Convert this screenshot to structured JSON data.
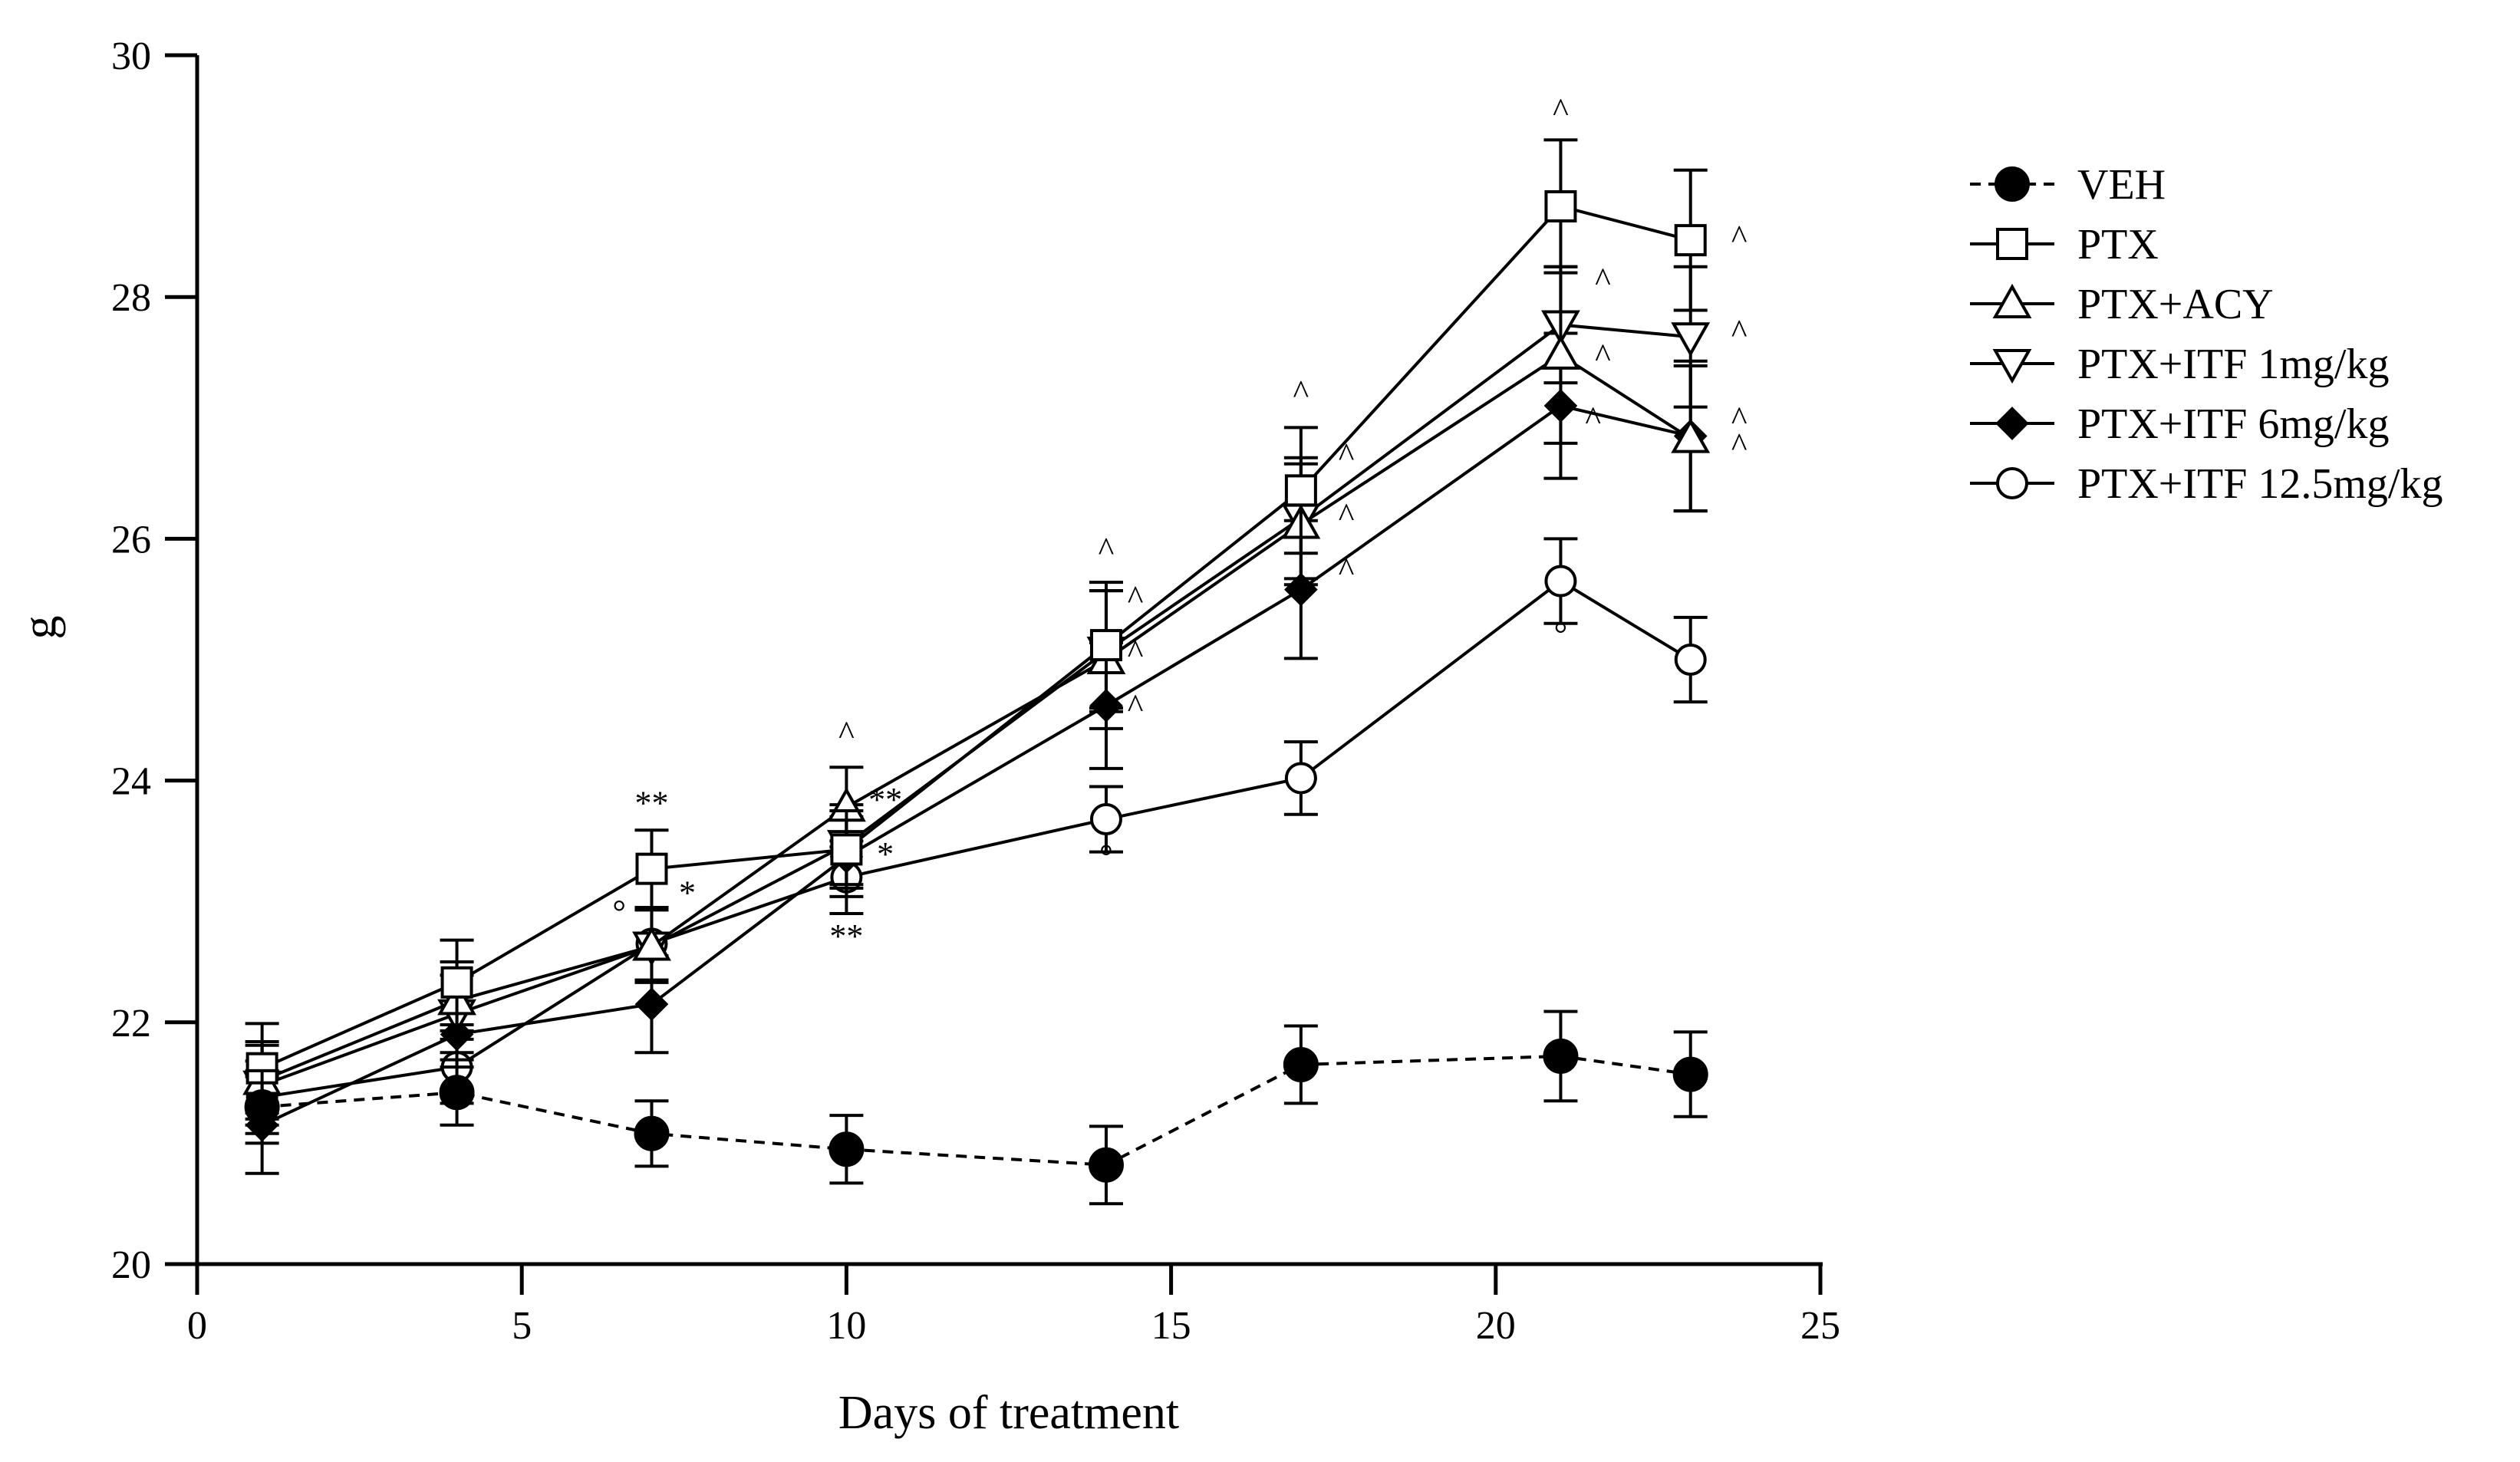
{
  "chart_data": {
    "type": "line",
    "title": "",
    "xlabel": "Days of treatment",
    "ylabel": "g",
    "xlim": [
      0,
      25
    ],
    "ylim": [
      20,
      30
    ],
    "xticks": [
      0,
      5,
      10,
      15,
      20,
      25
    ],
    "yticks": [
      20,
      22,
      24,
      26,
      28,
      30
    ],
    "x": [
      1,
      4,
      7,
      10,
      14,
      17,
      21,
      23
    ],
    "legend_position": "right",
    "series": [
      {
        "name": "VEH",
        "marker": "filled-circle",
        "dashed": true,
        "values": [
          21.3,
          21.42,
          21.08,
          20.95,
          20.82,
          21.65,
          21.72,
          21.57
        ],
        "errors": [
          0.3,
          0.27,
          0.27,
          0.28,
          0.32,
          0.32,
          0.37,
          0.35
        ]
      },
      {
        "name": "PTX",
        "marker": "open-square",
        "dashed": false,
        "values": [
          21.62,
          22.33,
          23.27,
          23.43,
          25.12,
          26.4,
          28.75,
          28.47
        ],
        "errors": [
          0.37,
          0.35,
          0.32,
          0.32,
          0.52,
          0.52,
          0.55,
          0.58
        ]
      },
      {
        "name": "PTX+ACY",
        "marker": "open-triangle-up",
        "dashed": false,
        "values": [
          21.52,
          22.18,
          22.63,
          23.78,
          25.0,
          26.12,
          27.52,
          26.83
        ],
        "errors": [
          0.32,
          0.32,
          0.3,
          0.33,
          0.57,
          0.5,
          0.73,
          0.6
        ]
      },
      {
        "name": "PTX+ITF 1mg/kg",
        "marker": "open-triangle-down",
        "dashed": false,
        "values": [
          21.48,
          22.07,
          22.63,
          23.47,
          25.07,
          26.17,
          27.77,
          27.67
        ],
        "errors": [
          0.33,
          0.32,
          0.3,
          0.33,
          0.5,
          0.5,
          0.48,
          0.58
        ]
      },
      {
        "name": "PTX+ITF 6mg/kg",
        "marker": "filled-diamond",
        "dashed": false,
        "values": [
          21.15,
          21.9,
          22.15,
          23.37,
          24.62,
          25.58,
          27.1,
          26.85
        ],
        "errors": [
          0.4,
          0.27,
          0.4,
          0.33,
          0.52,
          0.57,
          0.6,
          0.62
        ]
      },
      {
        "name": "PTX+ITF 12.5mg/kg",
        "marker": "open-circle",
        "dashed": false,
        "values": [
          21.38,
          21.63,
          22.65,
          23.2,
          23.68,
          24.02,
          25.65,
          25.0
        ],
        "errors": [
          0.3,
          0.3,
          0.3,
          0.3,
          0.27,
          0.3,
          0.35,
          0.35
        ]
      }
    ],
    "annotations": [
      {
        "text": "**",
        "x": 7,
        "y": 23.72
      },
      {
        "text": "*",
        "x": 7.55,
        "y": 22.98
      },
      {
        "text": "°",
        "x": 6.5,
        "y": 22.82
      },
      {
        "text": "^",
        "x": 10,
        "y": 24.3
      },
      {
        "text": "**",
        "x": 10.6,
        "y": 23.75
      },
      {
        "text": "*",
        "x": 10.6,
        "y": 23.3
      },
      {
        "text": "**",
        "x": 10,
        "y": 22.62
      },
      {
        "text": "^",
        "x": 14,
        "y": 25.82
      },
      {
        "text": "^",
        "x": 14.45,
        "y": 25.42
      },
      {
        "text": "^",
        "x": 14.45,
        "y": 24.97
      },
      {
        "text": "^",
        "x": 14.45,
        "y": 24.52
      },
      {
        "text": "°",
        "x": 14,
        "y": 23.28
      },
      {
        "text": "^",
        "x": 17,
        "y": 27.12
      },
      {
        "text": "^",
        "x": 17.7,
        "y": 26.6
      },
      {
        "text": "^",
        "x": 17.7,
        "y": 26.1
      },
      {
        "text": "^",
        "x": 17.7,
        "y": 25.65
      },
      {
        "text": "^",
        "x": 21,
        "y": 29.45
      },
      {
        "text": "^",
        "x": 21.65,
        "y": 28.05
      },
      {
        "text": "^",
        "x": 21.65,
        "y": 27.42
      },
      {
        "text": "^",
        "x": 21.5,
        "y": 26.9
      },
      {
        "text": "°",
        "x": 21,
        "y": 25.12
      },
      {
        "text": "^",
        "x": 23.75,
        "y": 28.4
      },
      {
        "text": "^",
        "x": 23.75,
        "y": 27.62
      },
      {
        "text": "^",
        "x": 23.75,
        "y": 26.9
      },
      {
        "text": "^",
        "x": 23.75,
        "y": 26.68
      }
    ]
  }
}
